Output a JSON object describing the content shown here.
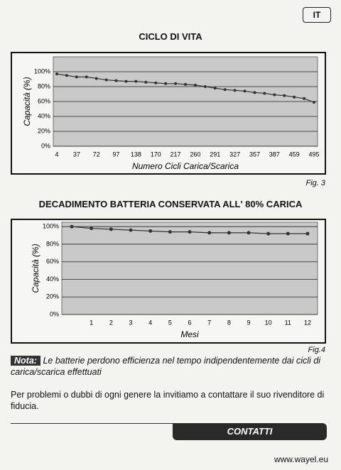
{
  "header": {
    "lang": "IT"
  },
  "chart_data": [
    {
      "type": "line",
      "title": "CICLO DI VITA",
      "y_label": "Capacità (%)",
      "x_label": "Numero Cicli Carica/Scarica",
      "categories": [
        "4",
        null,
        "37",
        null,
        "72",
        null,
        "97",
        null,
        "138",
        null,
        "170",
        null,
        "217",
        null,
        "260",
        null,
        "291",
        null,
        "327",
        null,
        "357",
        null,
        "387",
        null,
        "459",
        null,
        "495"
      ],
      "values": [
        97,
        95,
        93,
        93,
        91,
        89,
        88,
        87,
        87,
        86,
        85,
        84,
        84,
        83,
        82,
        80,
        78,
        76,
        75,
        74,
        72,
        71,
        69,
        68,
        66,
        64,
        59
      ],
      "color": "#333333",
      "ylim": [
        0,
        120
      ],
      "yticks": [
        {
          "value": 0,
          "label": "0%"
        },
        {
          "value": 20,
          "label": "20%"
        },
        {
          "value": 40,
          "label": "40%"
        },
        {
          "value": 60,
          "label": "60%"
        },
        {
          "value": 80,
          "label": "80%"
        },
        {
          "value": 100,
          "label": "100%"
        }
      ],
      "grid": true,
      "figure_label": "Fig. 3"
    },
    {
      "type": "line",
      "title": "DECADIMENTO BATTERIA CONSERVATA ALL' 80% CARICA",
      "y_label": "Capacità (%)",
      "x_label": "Mesi",
      "categories": [
        null,
        "1",
        "2",
        "3",
        "4",
        "5",
        "6",
        "7",
        "8",
        "9",
        "10",
        "11",
        "12"
      ],
      "values": [
        100,
        98,
        97,
        96,
        95,
        94,
        94,
        93,
        93,
        93,
        92,
        92,
        92
      ],
      "color": "#333333",
      "ylim": [
        0,
        105
      ],
      "yticks": [
        {
          "value": 0,
          "label": "0%"
        },
        {
          "value": 20,
          "label": "20%"
        },
        {
          "value": 40,
          "label": "40%"
        },
        {
          "value": 60,
          "label": "60%"
        },
        {
          "value": 80,
          "label": "80%"
        },
        {
          "value": 100,
          "label": "100%"
        }
      ],
      "grid": true,
      "figure_label": "Fig.4"
    }
  ],
  "note": {
    "label": "Nota:",
    "text": "Le batterie perdono efficienza nel tempo indipendentemente dai cicli di carica/scarica effettuati"
  },
  "paragraph": "Per problemi o dubbi di ogni genere la invitiamo a contattare il suo rivenditore di fiducia.",
  "footer": {
    "button": "CONTATTI",
    "url": "www.wayel.eu"
  }
}
